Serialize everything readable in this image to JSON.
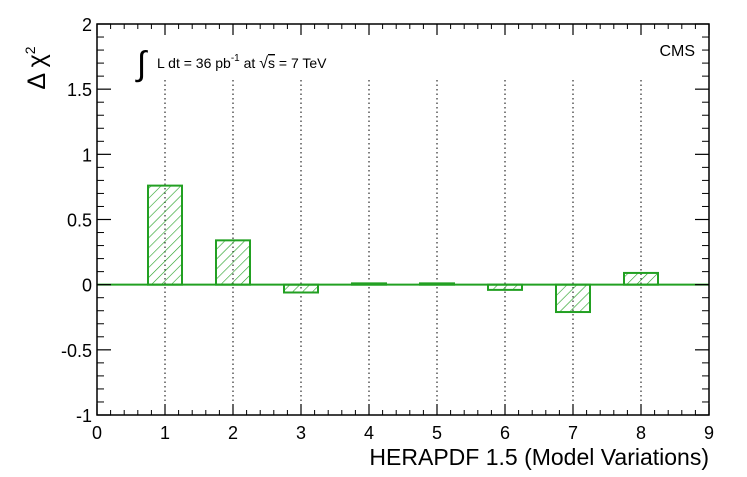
{
  "chart_data": {
    "type": "bar",
    "xlabel": "HERAPDF 1.5 (Model Variations)",
    "ylabel": {
      "main": "Δ χ",
      "sup": "2"
    },
    "xlim": [
      0,
      9
    ],
    "ylim": [
      -1,
      2
    ],
    "xticks": [
      "0",
      "1",
      "2",
      "3",
      "4",
      "5",
      "6",
      "7",
      "8",
      "9"
    ],
    "yticks": [
      "-1",
      "-0.5",
      "0",
      "0.5",
      "1",
      "1.5",
      "2"
    ],
    "x": [
      1,
      2,
      3,
      4,
      5,
      6,
      7,
      8
    ],
    "values": [
      0.76,
      0.34,
      -0.06,
      0.01,
      0.01,
      -0.04,
      -0.21,
      0.09
    ],
    "bar_width": 0.5,
    "color": "#22a022",
    "fill": "hatched",
    "experiment_label": "CMS",
    "lumi": {
      "integral": "∫",
      "text_a": "L dt = 36 pb",
      "sup": "-1",
      "text_b": " at ",
      "sqrt": "√",
      "s": "s",
      "text_c": " = 7 TeV"
    },
    "grid": "dotted vertical lines at x = 1–8"
  }
}
